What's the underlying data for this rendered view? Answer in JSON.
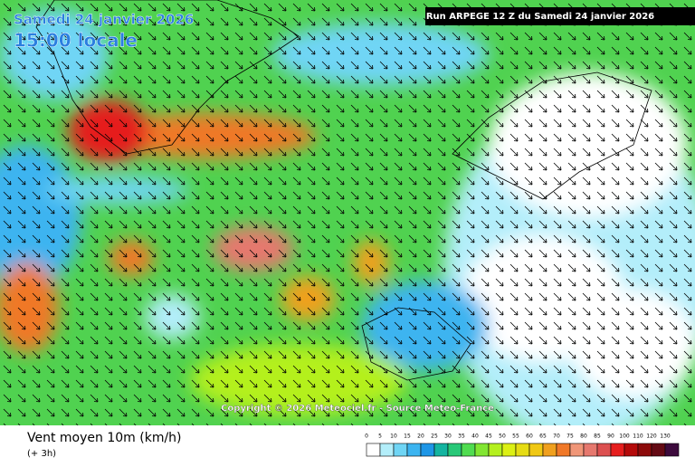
{
  "header": {
    "date": "Samedi 24 janvier 2026",
    "time": "15:00 locale",
    "run": "Run ARPEGE 12 Z du Samedi 24 janvier 2026"
  },
  "copyright": "Copyright © 2026 Meteociel.fr - Source Meteo-France",
  "footer": {
    "title": "Vent moyen 10m (km/h)",
    "step": "(+ 3h)"
  },
  "legend": {
    "stops": [
      {
        "value": 0,
        "color": "#ffffff"
      },
      {
        "value": 5,
        "color": "#b3eefa"
      },
      {
        "value": 10,
        "color": "#6fd5f5"
      },
      {
        "value": 15,
        "color": "#3cb4f0"
      },
      {
        "value": 20,
        "color": "#1e96e6"
      },
      {
        "value": 25,
        "color": "#14b4a0"
      },
      {
        "value": 30,
        "color": "#28c878"
      },
      {
        "value": 35,
        "color": "#50dc50"
      },
      {
        "value": 40,
        "color": "#82e632"
      },
      {
        "value": 45,
        "color": "#b4f01e"
      },
      {
        "value": 50,
        "color": "#dcf014"
      },
      {
        "value": 55,
        "color": "#e6dc14"
      },
      {
        "value": 60,
        "color": "#f0c814"
      },
      {
        "value": 65,
        "color": "#f0a01e"
      },
      {
        "value": 70,
        "color": "#f07828"
      },
      {
        "value": 75,
        "color": "#f09678"
      },
      {
        "value": 80,
        "color": "#e6786e"
      },
      {
        "value": 85,
        "color": "#dc5050"
      },
      {
        "value": 90,
        "color": "#e61e1e"
      },
      {
        "value": 100,
        "color": "#b40a0a"
      },
      {
        "value": 110,
        "color": "#8c0a0a"
      },
      {
        "value": 120,
        "color": "#640a14"
      },
      {
        "value": 130,
        "color": "#3c0a3c"
      }
    ]
  }
}
